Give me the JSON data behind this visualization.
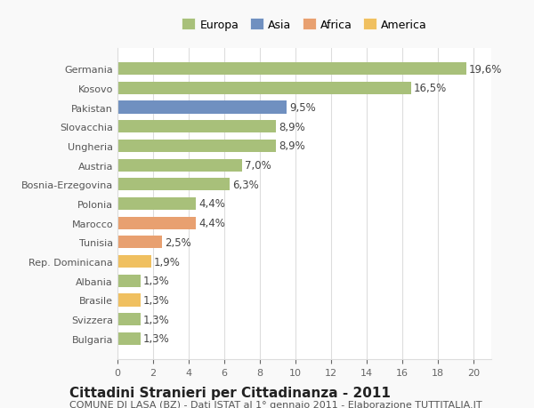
{
  "categories": [
    "Bulgaria",
    "Svizzera",
    "Brasile",
    "Albania",
    "Rep. Dominicana",
    "Tunisia",
    "Marocco",
    "Polonia",
    "Bosnia-Erzegovina",
    "Austria",
    "Ungheria",
    "Slovacchia",
    "Pakistan",
    "Kosovo",
    "Germania"
  ],
  "values": [
    1.3,
    1.3,
    1.3,
    1.3,
    1.9,
    2.5,
    4.4,
    4.4,
    6.3,
    7.0,
    8.9,
    8.9,
    9.5,
    16.5,
    19.6
  ],
  "labels": [
    "1,3%",
    "1,3%",
    "1,3%",
    "1,3%",
    "1,9%",
    "2,5%",
    "4,4%",
    "4,4%",
    "6,3%",
    "7,0%",
    "8,9%",
    "8,9%",
    "9,5%",
    "16,5%",
    "19,6%"
  ],
  "colors": [
    "#a8c07a",
    "#a8c07a",
    "#f0c060",
    "#a8c07a",
    "#f0c060",
    "#e8a070",
    "#e8a070",
    "#a8c07a",
    "#a8c07a",
    "#a8c07a",
    "#a8c07a",
    "#a8c07a",
    "#7090c0",
    "#a8c07a",
    "#a8c07a"
  ],
  "legend": {
    "labels": [
      "Europa",
      "Asia",
      "Africa",
      "America"
    ],
    "colors": [
      "#a8c07a",
      "#7090c0",
      "#e8a070",
      "#f0c060"
    ]
  },
  "title": "Cittadini Stranieri per Cittadinanza - 2011",
  "subtitle": "COMUNE DI LASA (BZ) - Dati ISTAT al 1° gennaio 2011 - Elaborazione TUTTITALIA.IT",
  "xlim": [
    0,
    21
  ],
  "xticks": [
    0,
    2,
    4,
    6,
    8,
    10,
    12,
    14,
    16,
    18,
    20
  ],
  "background_color": "#f9f9f9",
  "bar_background": "#ffffff",
  "grid_color": "#dddddd",
  "title_fontsize": 11,
  "subtitle_fontsize": 8,
  "label_fontsize": 8.5,
  "tick_fontsize": 8
}
